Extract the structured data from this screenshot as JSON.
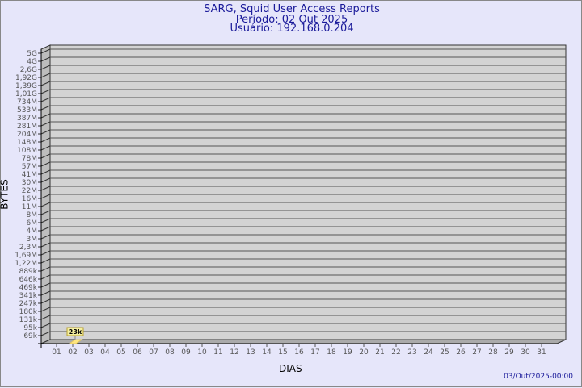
{
  "header": {
    "line1": "SARG, Squid User Access Reports",
    "line2": "Período: 02 Out 2025",
    "line3": "Usuário: 192.168.0.204"
  },
  "footer": "03/Out/2025-00:00",
  "chart_data": {
    "type": "bar",
    "title": "SARG, Squid User Access Reports",
    "xlabel": "DIAS",
    "ylabel": "BYTES",
    "y_ticks": [
      "5G",
      "4G",
      "2,6G",
      "1,92G",
      "1,39G",
      "1,01G",
      "734M",
      "533M",
      "387M",
      "281M",
      "204M",
      "148M",
      "108M",
      "78M",
      "57M",
      "41M",
      "30M",
      "22M",
      "16M",
      "11M",
      "8M",
      "6M",
      "4M",
      "3M",
      "2,3M",
      "1,69M",
      "1,22M",
      "889k",
      "646k",
      "469k",
      "341k",
      "247k",
      "180k",
      "131k",
      "95k",
      "69k"
    ],
    "categories": [
      "01",
      "02",
      "03",
      "04",
      "05",
      "06",
      "07",
      "08",
      "09",
      "10",
      "11",
      "12",
      "13",
      "14",
      "15",
      "16",
      "17",
      "18",
      "19",
      "20",
      "21",
      "22",
      "23",
      "24",
      "25",
      "26",
      "27",
      "28",
      "29",
      "30",
      "31"
    ],
    "values": [
      null,
      23000,
      null,
      null,
      null,
      null,
      null,
      null,
      null,
      null,
      null,
      null,
      null,
      null,
      null,
      null,
      null,
      null,
      null,
      null,
      null,
      null,
      null,
      null,
      null,
      null,
      null,
      null,
      null,
      null,
      null
    ],
    "data_labels": {
      "02": "23k"
    },
    "scale": "log",
    "grid": true,
    "colors": {
      "wall": "#d3d3d3",
      "side": "#bdbdbd",
      "bar": "#ffe680",
      "label_bg": "#f5f0a0"
    }
  }
}
